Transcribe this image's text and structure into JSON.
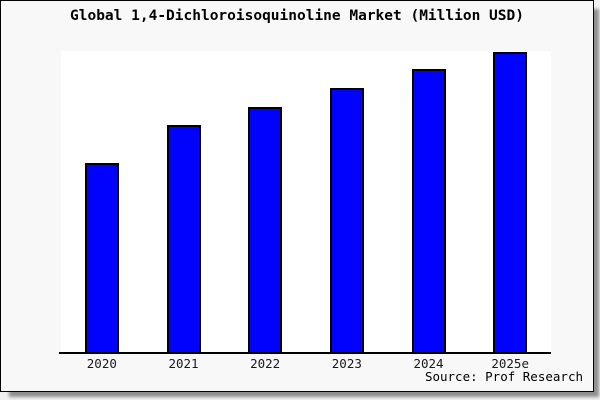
{
  "header": {
    "title": "Global 1,4-Dichloroisoquinoline Market (Million USD)"
  },
  "footer": {
    "source_label": "Source: Prof Research"
  },
  "chart_data": {
    "type": "bar",
    "title": "Global 1,4-Dichloroisoquinoline Market (Million USD)",
    "categories": [
      "2020",
      "2021",
      "2022",
      "2023",
      "2024",
      "2025e"
    ],
    "values": [
      62.8,
      75.4,
      81.4,
      87.7,
      94.0,
      99.7
    ],
    "xlabel": "",
    "ylabel": "",
    "ylim": [
      0,
      100
    ],
    "y_axis_visible": false,
    "gridlines": false,
    "legend": "none",
    "source": "Source: Prof Research"
  },
  "colors": {
    "bar_fill": "#0101fe",
    "bar_border": "#000000",
    "plot_background": "#ffffff",
    "page_background": "#f8f8f8",
    "axis": "#000000"
  }
}
